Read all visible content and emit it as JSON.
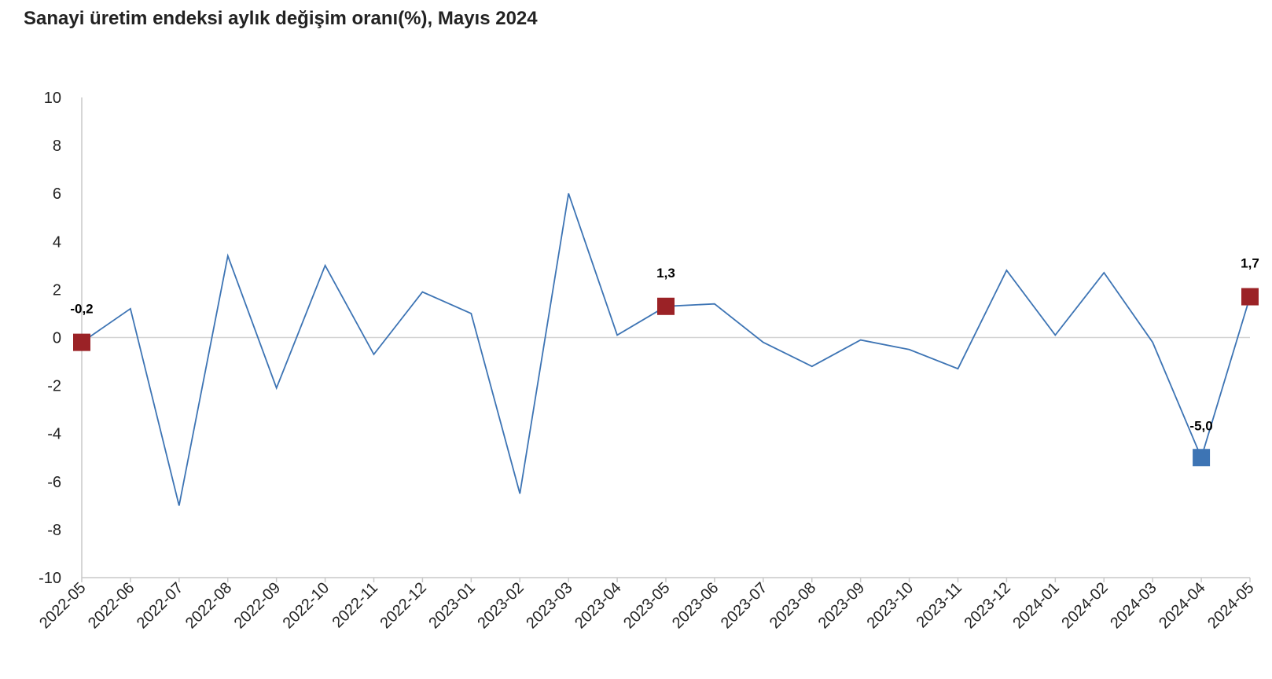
{
  "chart_data": {
    "type": "line",
    "title": "Sanayi üretim endeksi aylık değişim oranı(%), Mayıs 2024",
    "xlabel": "",
    "ylabel": "",
    "ylim": [
      -10,
      10
    ],
    "yticks": [
      10,
      8,
      6,
      4,
      2,
      0,
      -2,
      -4,
      -6,
      -8,
      -10
    ],
    "grid": false,
    "categories": [
      "2022-05",
      "2022-06",
      "2022-07",
      "2022-08",
      "2022-09",
      "2022-10",
      "2022-11",
      "2022-12",
      "2023-01",
      "2023-02",
      "2023-03",
      "2023-04",
      "2023-05",
      "2023-06",
      "2023-07",
      "2023-08",
      "2023-09",
      "2023-10",
      "2023-11",
      "2023-12",
      "2024-01",
      "2024-02",
      "2024-03",
      "2024-04",
      "2024-05"
    ],
    "series": [
      {
        "color": "#3d74b4",
        "values": [
          -0.2,
          1.2,
          -7.0,
          3.4,
          -2.1,
          3.0,
          -0.7,
          1.9,
          1.0,
          -6.5,
          6.0,
          0.1,
          1.3,
          1.4,
          -0.2,
          -1.2,
          -0.1,
          -0.5,
          -1.3,
          2.8,
          0.1,
          2.7,
          -0.2,
          -5.0,
          1.7
        ]
      }
    ],
    "highlighted_points": [
      {
        "category": "2022-05",
        "value": -0.2,
        "label": "-0,2",
        "color": "#9b2226"
      },
      {
        "category": "2023-05",
        "value": 1.3,
        "label": "1,3",
        "color": "#9b2226"
      },
      {
        "category": "2024-04",
        "value": -5.0,
        "label": "-5,0",
        "color": "#3d74b4"
      },
      {
        "category": "2024-05",
        "value": 1.7,
        "label": "1,7",
        "color": "#9b2226"
      }
    ],
    "axis_color": "#c8c8c8",
    "zero_line_color": "#d3d3d3"
  }
}
